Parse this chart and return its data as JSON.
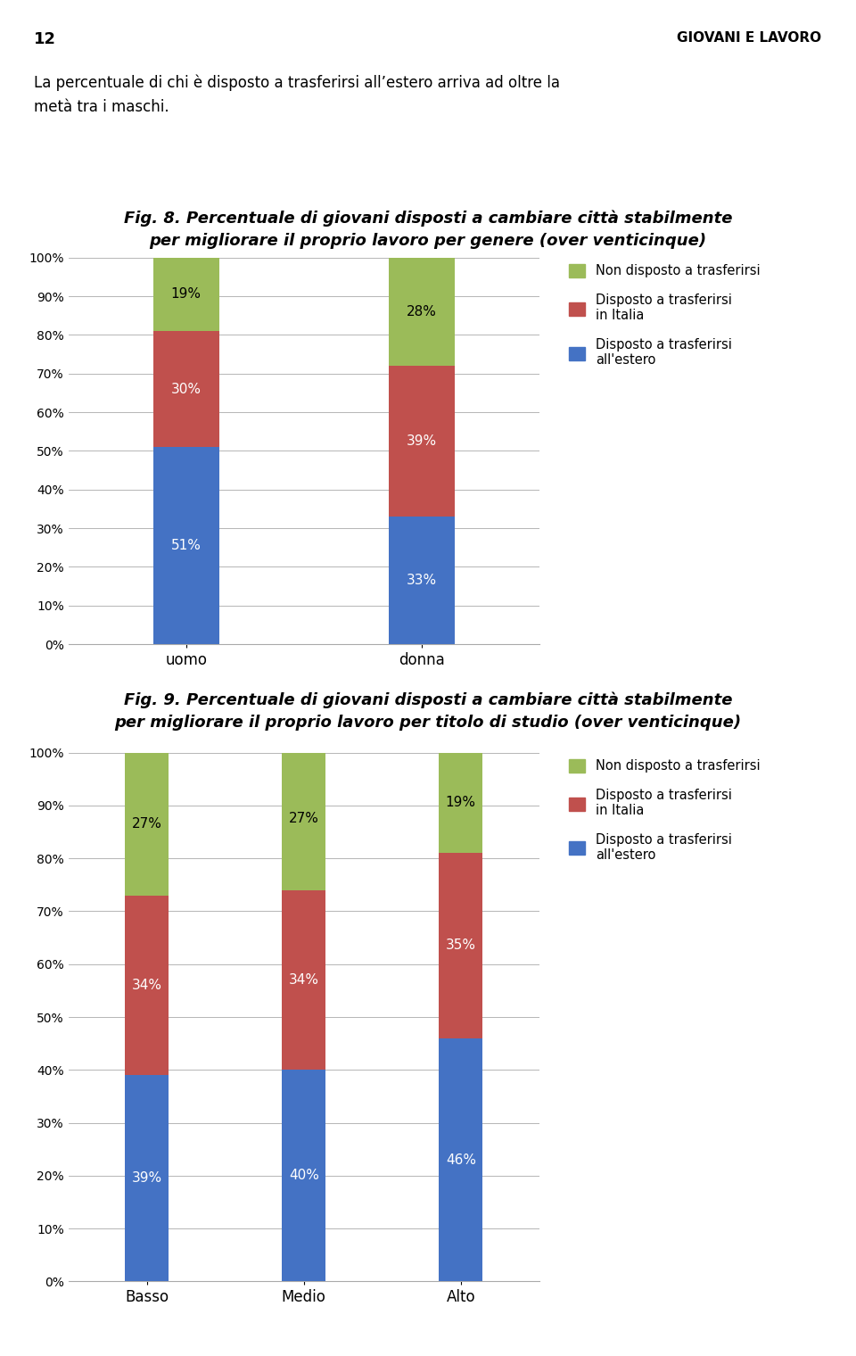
{
  "page_number": "12",
  "page_header": "GIOVANI E LAVORO",
  "intro_text": "La percentuale di chi è disposto a trasferirsi all’estero arriva ad oltre la\nmetà tra i maschi.",
  "fig8_title": "Fig. 8. Percentuale di giovani disposti a cambiare città stabilmente\nper migliorare il proprio lavoro per genere (over venticinque)",
  "fig8_categories": [
    "uomo",
    "donna"
  ],
  "fig8_estero": [
    51,
    33
  ],
  "fig8_italia": [
    30,
    39
  ],
  "fig8_non": [
    19,
    28
  ],
  "fig9_title": "Fig. 9. Percentuale di giovani disposti a cambiare città stabilmente\nper migliorare il proprio lavoro per titolo di studio (over venticinque)",
  "fig9_categories": [
    "Basso",
    "Medio",
    "Alto"
  ],
  "fig9_estero": [
    39,
    40,
    46
  ],
  "fig9_italia": [
    34,
    34,
    35
  ],
  "fig9_non": [
    27,
    27,
    19
  ],
  "color_estero": "#4472C4",
  "color_italia": "#C0504D",
  "color_non": "#9BBB59",
  "legend_label_non": "Non disposto a trasferirsi",
  "legend_label_ita": "Disposto a trasferirsi\nin Italia",
  "legend_label_est": "Disposto a trasferirsi\nall'estero",
  "yticks": [
    0,
    10,
    20,
    30,
    40,
    50,
    60,
    70,
    80,
    90,
    100
  ],
  "ytick_labels": [
    "0%",
    "10%",
    "20%",
    "30%",
    "40%",
    "50%",
    "60%",
    "70%",
    "80%",
    "90%",
    "100%"
  ]
}
